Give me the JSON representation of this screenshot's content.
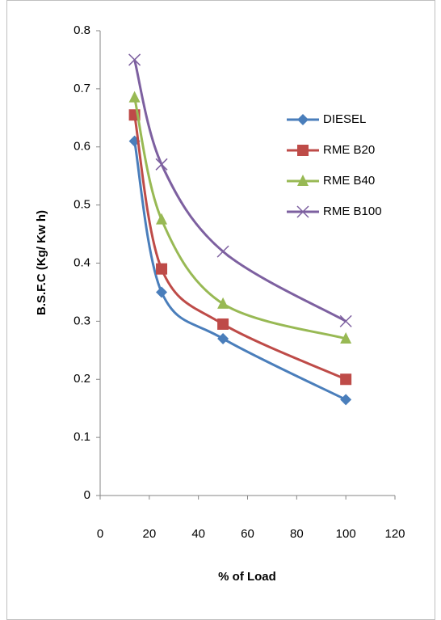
{
  "chart_data": {
    "type": "line",
    "x_label": "% of Load",
    "y_label": "B.S.F.C (Kg/ Kw h)",
    "x": [
      14,
      25,
      50,
      100
    ],
    "series": [
      {
        "name": "DIESEL",
        "color": "#4a7ebb",
        "marker": "diamond",
        "values": [
          0.61,
          0.35,
          0.27,
          0.165
        ]
      },
      {
        "name": "RME B20",
        "color": "#be4b48",
        "marker": "square",
        "values": [
          0.655,
          0.39,
          0.295,
          0.2
        ]
      },
      {
        "name": "RME B40",
        "color": "#98b954",
        "marker": "triangle",
        "values": [
          0.685,
          0.475,
          0.33,
          0.27
        ]
      },
      {
        "name": "RME B100",
        "color": "#7d60a0",
        "marker": "x",
        "values": [
          0.75,
          0.57,
          0.42,
          0.3
        ]
      }
    ],
    "xlim": [
      0,
      120
    ],
    "xticks": [
      0,
      20,
      40,
      60,
      80,
      100,
      120
    ],
    "ylim": [
      0,
      0.8
    ],
    "yticks": [
      0,
      0.1,
      0.2,
      0.3,
      0.4,
      0.5,
      0.6,
      0.7,
      0.8
    ],
    "smooth": true,
    "grid": false,
    "legend": "right"
  }
}
